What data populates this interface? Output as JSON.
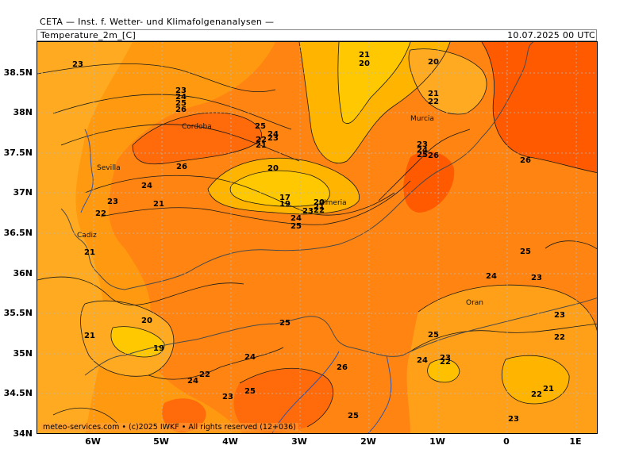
{
  "header": {
    "title": "CETA — Inst. f. Wetter- und Klimafolgenanalysen —",
    "parameter": "Temperature_2m_[C]",
    "valid_time": "10.07.2025 00 UTC"
  },
  "axes": {
    "lat_labels": [
      "38.5N",
      "38N",
      "37.5N",
      "37N",
      "36.5N",
      "36N",
      "35.5N",
      "35N",
      "34.5N",
      "34N"
    ],
    "lon_labels": [
      "6W",
      "5W",
      "4W",
      "3W",
      "2W",
      "1W",
      "0",
      "1E"
    ]
  },
  "cities": [
    "Cordoba",
    "Sevilla",
    "Cadiz",
    "Murcia",
    "Almeria",
    "Oran"
  ],
  "contour_labels": [
    "23",
    "23",
    "24",
    "25",
    "26",
    "25",
    "24",
    "23",
    "22",
    "21",
    "26",
    "24",
    "23",
    "22",
    "21",
    "21",
    "20",
    "21",
    "20",
    "21",
    "22",
    "23",
    "24",
    "25",
    "26",
    "26",
    "20",
    "17",
    "19",
    "20",
    "21",
    "22",
    "23",
    "24",
    "25",
    "25",
    "24",
    "23",
    "24",
    "25",
    "20",
    "19",
    "21",
    "22",
    "23",
    "24",
    "25",
    "26",
    "25",
    "25",
    "24",
    "22",
    "23",
    "22",
    "21",
    "22",
    "23",
    "23"
  ],
  "credit": "meteo-services.com • (c)2025 IWKF • All rights reserved (12+036)",
  "colors": {
    "t19": "#ffcc00",
    "t21": "#ffb400",
    "t23": "#ff9a10",
    "t25": "#ff7d10",
    "t26": "#ff6a0a",
    "t27": "#ff5500",
    "graticule": "#b8b8b8",
    "border": "#3355aa"
  }
}
